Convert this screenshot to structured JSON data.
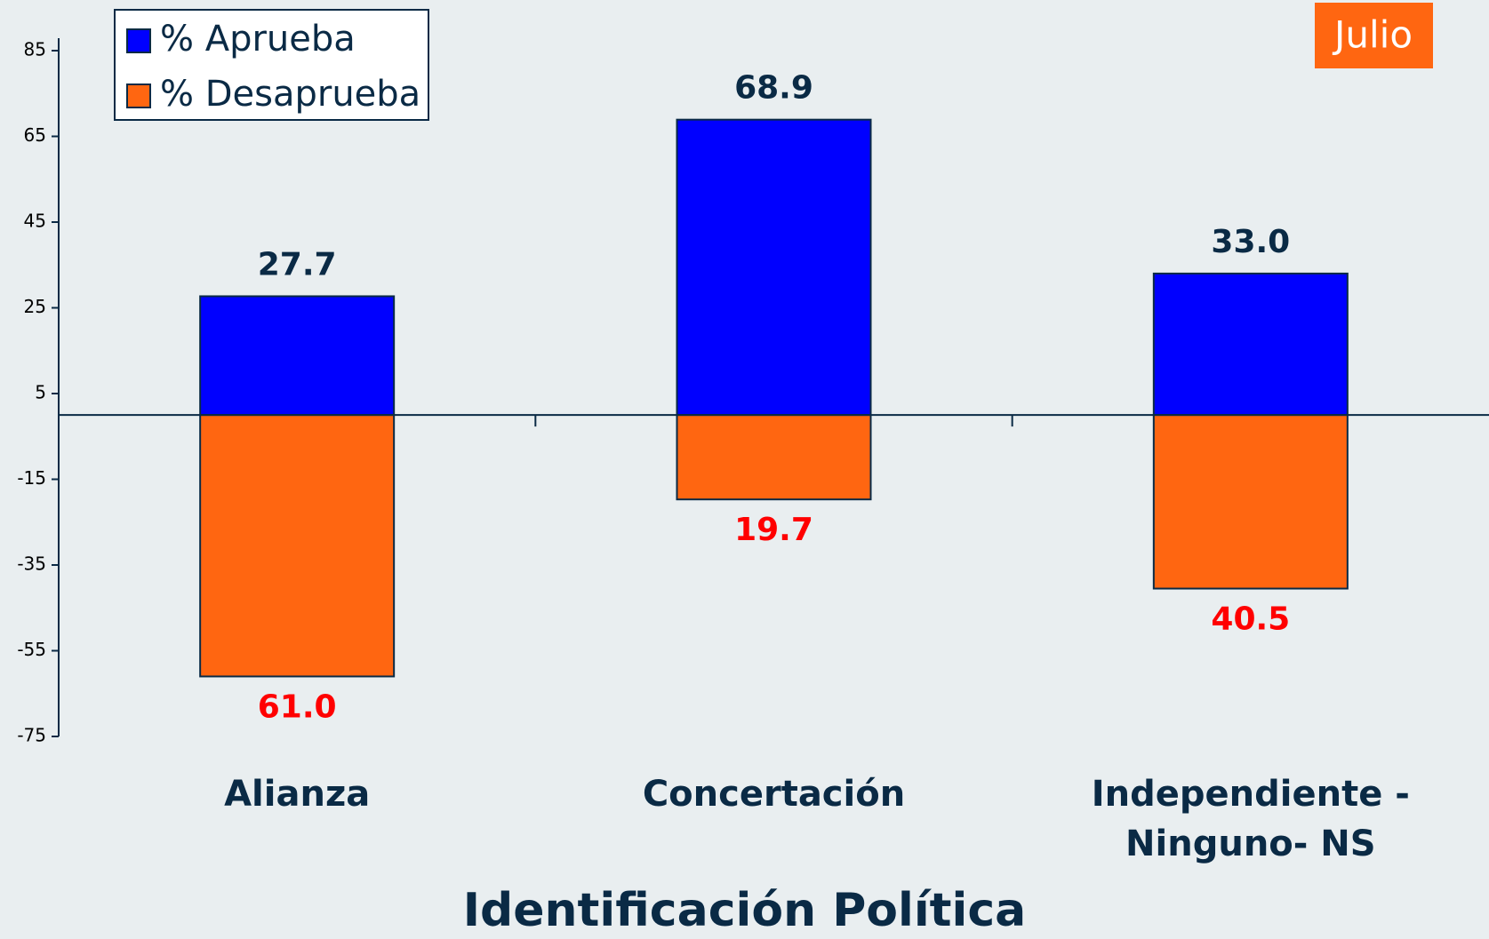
{
  "chart_data": {
    "type": "bar",
    "title": "Identificación Política",
    "badge": "Julio",
    "categories": [
      "Alianza",
      "Concertación",
      "Independiente - Ninguno- NS"
    ],
    "series": [
      {
        "name": "% Aprueba",
        "color": "#0000ff",
        "values": [
          27.7,
          68.9,
          33.0
        ],
        "value_labels": [
          "27.7",
          "68.9",
          "33.0"
        ],
        "label_color": "#0a2a45"
      },
      {
        "name": "% Desaprueba",
        "color": "#ff6611",
        "values": [
          -61.0,
          -19.7,
          -40.5
        ],
        "value_labels": [
          "61.0",
          "19.7",
          "40.5"
        ],
        "label_color": "#ff0000"
      }
    ],
    "ylim": [
      -75,
      85
    ],
    "yticks": [
      -75,
      -55,
      -35,
      -15,
      5,
      25,
      45,
      65,
      85
    ],
    "stacked": true,
    "legend": "top-left"
  }
}
